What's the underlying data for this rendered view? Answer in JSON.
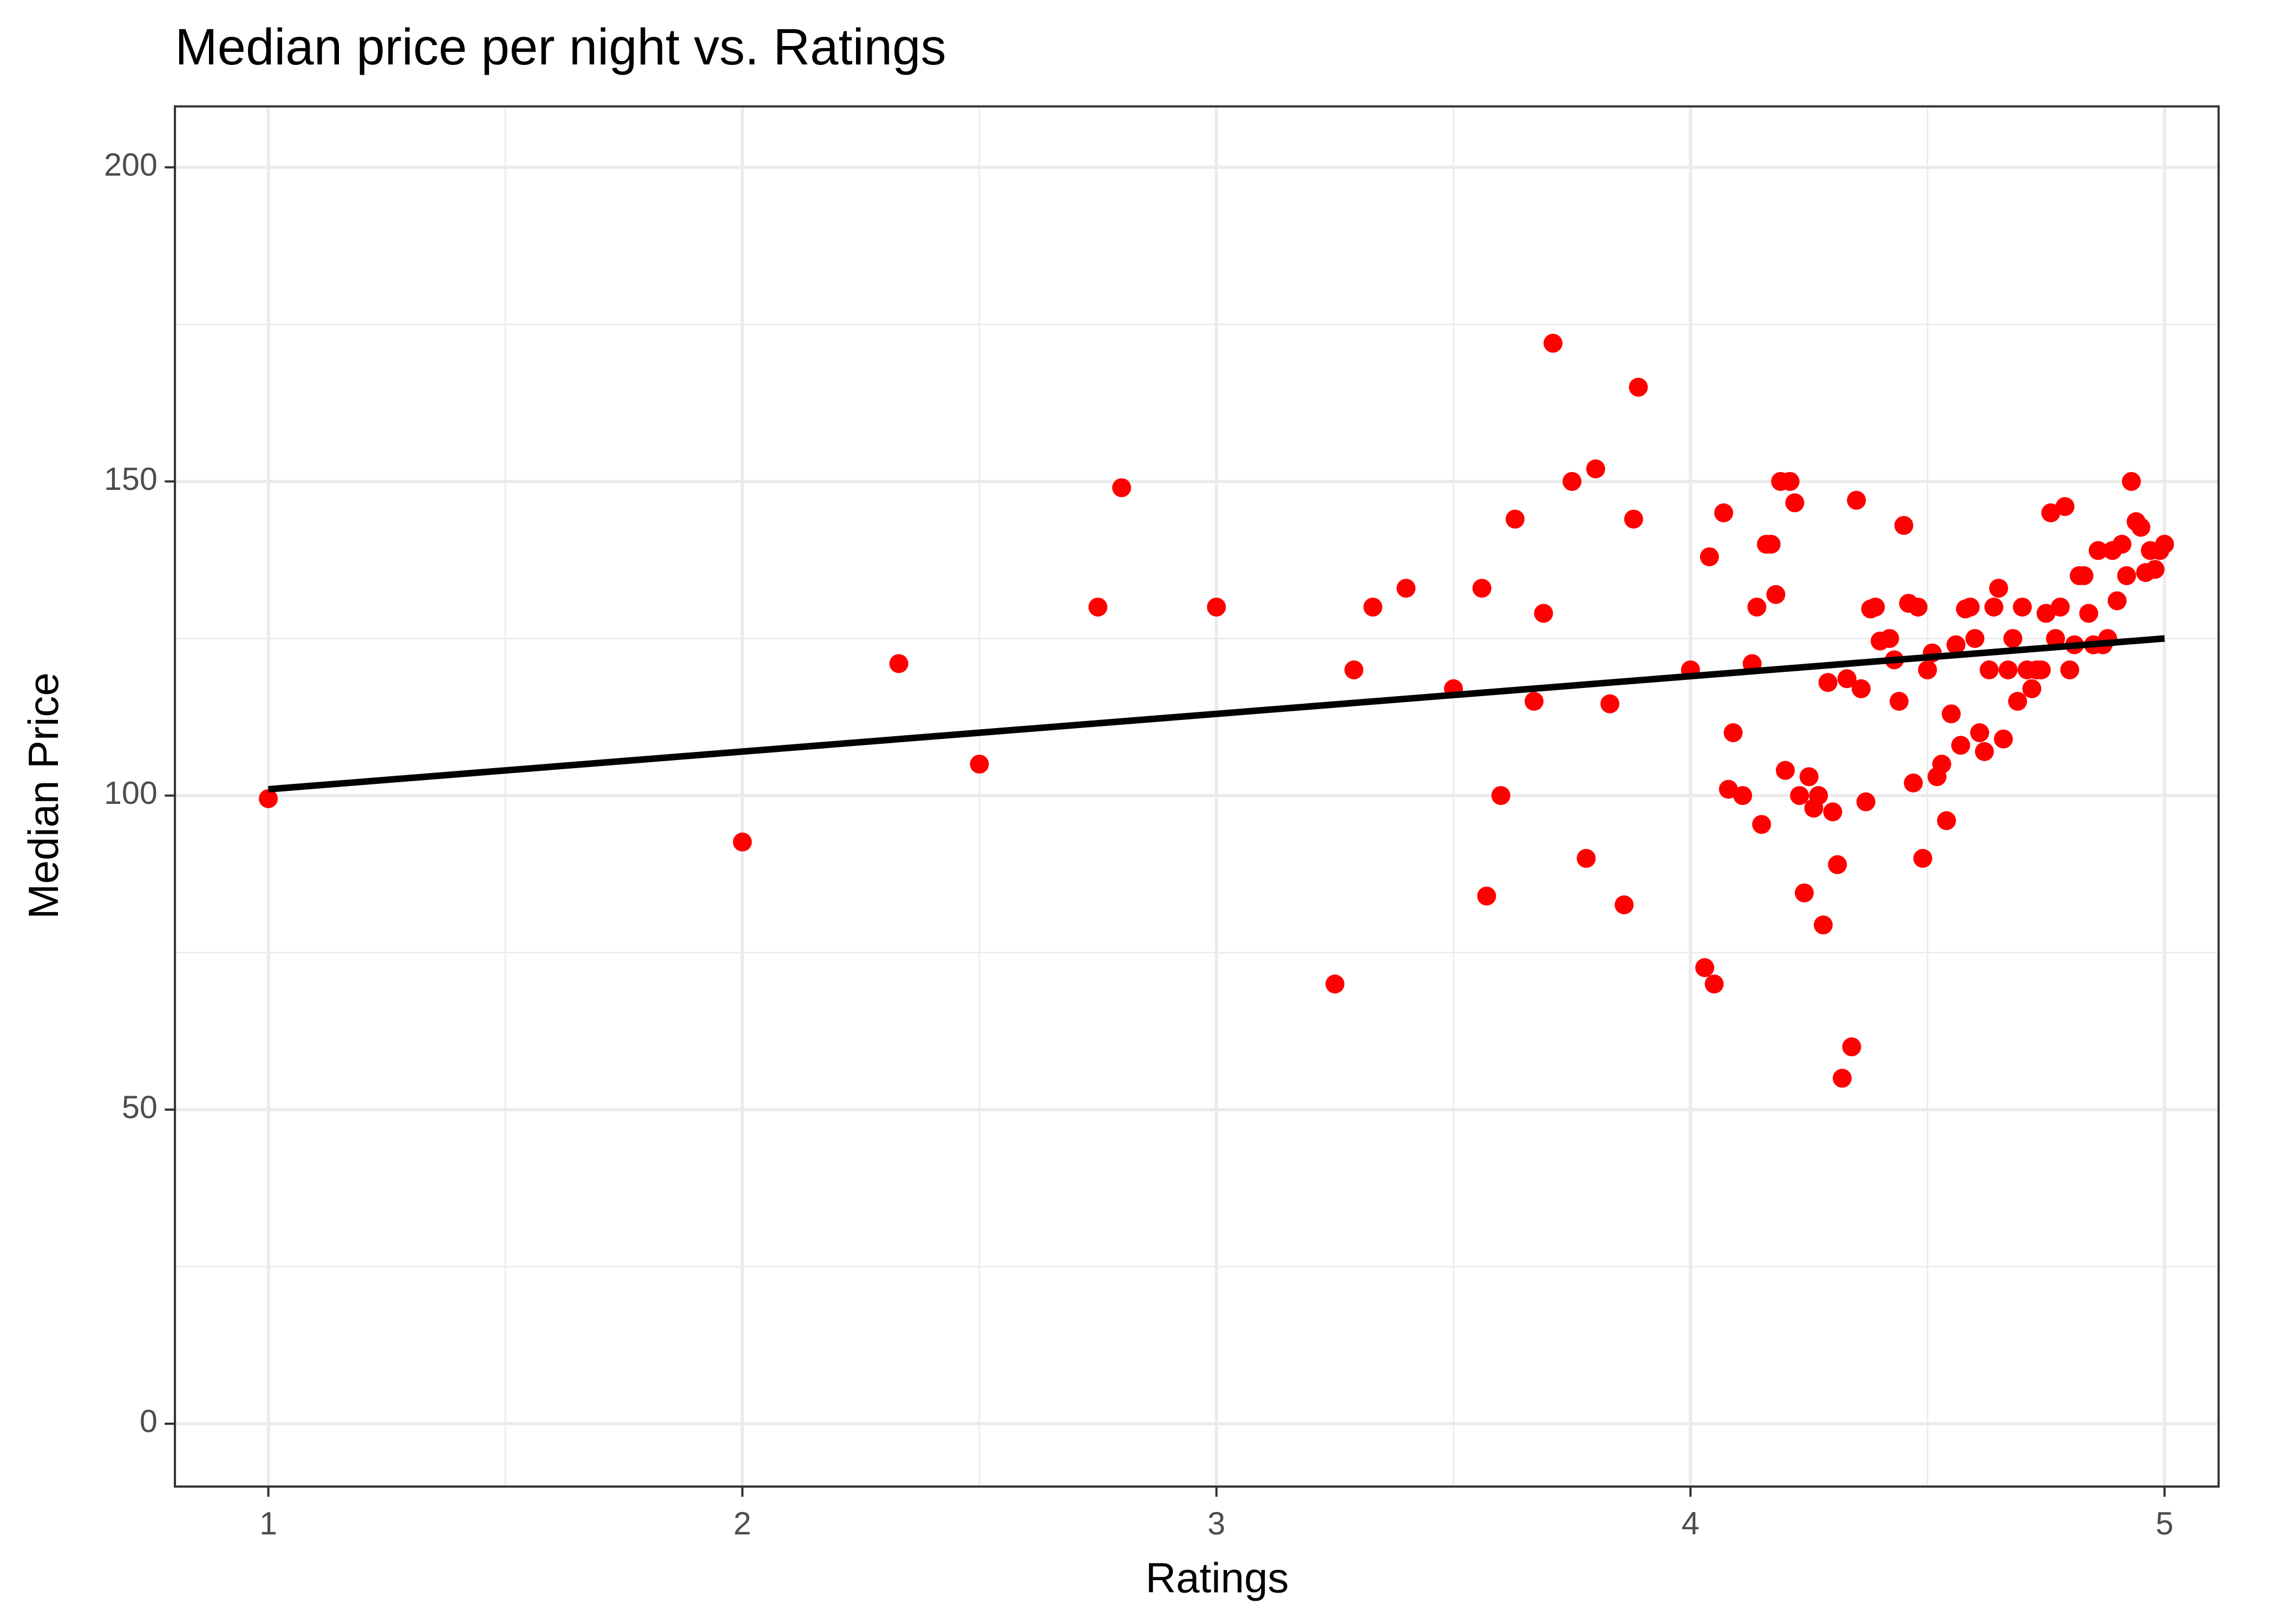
{
  "chart_data": {
    "type": "scatter",
    "title": "Median price per night vs. Ratings",
    "x_label": "Ratings",
    "y_label": "Median Price",
    "x": [
      1.0,
      2.0,
      2.33,
      2.5,
      2.75,
      2.8,
      3.0,
      3.25,
      3.29,
      3.33,
      3.4,
      3.5,
      3.56,
      3.57,
      3.6,
      3.63,
      3.67,
      3.69,
      3.71,
      3.75,
      3.78,
      3.8,
      3.83,
      3.86,
      3.88,
      3.89,
      4.0,
      4.03,
      4.04,
      4.05,
      4.07,
      4.08,
      4.09,
      4.11,
      4.13,
      4.14,
      4.15,
      4.16,
      4.17,
      4.18,
      4.19,
      4.2,
      4.21,
      4.22,
      4.23,
      4.24,
      4.25,
      4.26,
      4.27,
      4.28,
      4.29,
      4.3,
      4.31,
      4.32,
      4.33,
      4.34,
      4.35,
      4.36,
      4.37,
      4.38,
      4.39,
      4.4,
      4.42,
      4.43,
      4.44,
      4.45,
      4.46,
      4.47,
      4.48,
      4.49,
      4.5,
      4.51,
      4.52,
      4.53,
      4.54,
      4.55,
      4.56,
      4.57,
      4.58,
      4.59,
      4.6,
      4.61,
      4.62,
      4.63,
      4.64,
      4.65,
      4.66,
      4.67,
      4.68,
      4.69,
      4.7,
      4.71,
      4.72,
      4.73,
      4.74,
      4.75,
      4.76,
      4.77,
      4.78,
      4.79,
      4.8,
      4.81,
      4.82,
      4.83,
      4.84,
      4.85,
      4.86,
      4.87,
      4.88,
      4.89,
      4.9,
      4.91,
      4.92,
      4.93,
      4.94,
      4.95,
      4.96,
      4.97,
      4.98,
      4.99,
      5.0
    ],
    "values": [
      99.5,
      92.6,
      121,
      105,
      130,
      149,
      130,
      70,
      120,
      130,
      133,
      117,
      133,
      84,
      100,
      144,
      115,
      129,
      172,
      150,
      90,
      152,
      114.6,
      82.6,
      144,
      165,
      120,
      72.6,
      138,
      70,
      145,
      101,
      110,
      100,
      121,
      130,
      95.4,
      140,
      140,
      132,
      150,
      104,
      150,
      146.6,
      100,
      84.5,
      103,
      98,
      100,
      79.4,
      118,
      97.4,
      89,
      55,
      118.6,
      60,
      147,
      117,
      99,
      129.7,
      130,
      124.6,
      125,
      121.6,
      115,
      143,
      130.6,
      102,
      130,
      90,
      120,
      122.7,
      103,
      105,
      96,
      113,
      124,
      108,
      129.7,
      130,
      125,
      110,
      107,
      120,
      130,
      133,
      109,
      120,
      125,
      115,
      130,
      120,
      117,
      120,
      120,
      129,
      145,
      125,
      130,
      146,
      120,
      124,
      135,
      135,
      129,
      124,
      139,
      124,
      125,
      139,
      131,
      140,
      135,
      150,
      143.6,
      142.7,
      135.5,
      139,
      136,
      139,
      140
    ],
    "color": "#ff0000",
    "trend_line": {
      "x": [
        1,
        5
      ],
      "values": [
        101,
        125
      ],
      "color": "#000000"
    },
    "xlim": [
      0.803,
      5.114
    ],
    "ylim": [
      -10,
      209.7
    ],
    "xticks": [
      1,
      2,
      3,
      4,
      5
    ],
    "yticks": [
      0,
      50,
      100,
      150,
      200
    ],
    "x_minor_grid": [
      1.5,
      2.5,
      3.5,
      4.5
    ],
    "y_minor_grid": [
      25,
      75,
      125,
      175
    ],
    "grid": true
  }
}
